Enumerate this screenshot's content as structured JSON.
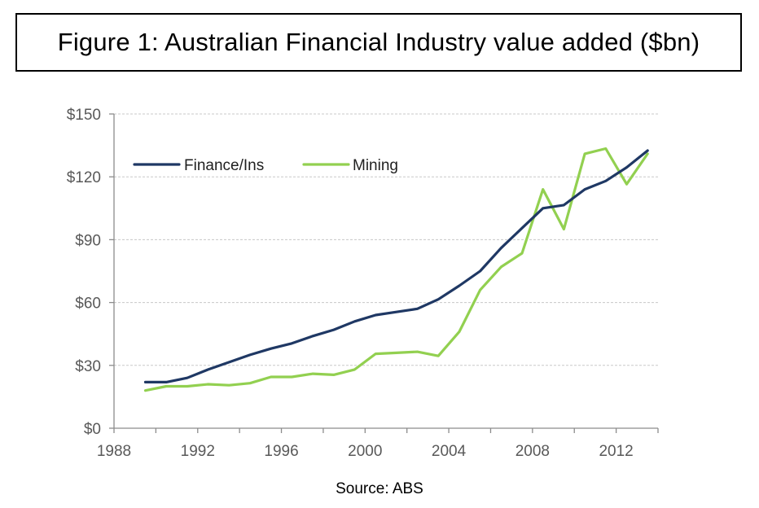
{
  "title": "Figure 1: Australian Financial Industry value added ($bn)",
  "source": "Source: ABS",
  "chart_data": {
    "type": "line",
    "title": "Australian Financial Industry value added ($bn)",
    "xlabel": "",
    "ylabel": "",
    "xlim": [
      1988,
      2014
    ],
    "ylim": [
      0,
      150
    ],
    "x_ticks": [
      1988,
      1992,
      1996,
      2000,
      2004,
      2008,
      2012
    ],
    "y_ticks": [
      0,
      30,
      60,
      90,
      120,
      150
    ],
    "y_tick_labels": [
      "$0",
      "$30",
      "$60",
      "$90",
      "$120",
      "$150"
    ],
    "grid": "horizontal dashed",
    "legend": "top-left",
    "x": [
      1989.5,
      1990.5,
      1991.5,
      1992.5,
      1993.5,
      1994.5,
      1995.5,
      1996.5,
      1997.5,
      1998.5,
      1999.5,
      2000.5,
      2001.5,
      2002.5,
      2003.5,
      2004.5,
      2005.5,
      2006.5,
      2007.5,
      2008.5,
      2009.5,
      2010.5,
      2011.5,
      2012.5,
      2013.5
    ],
    "series": [
      {
        "name": "Finance/Ins",
        "color": "#1f3864",
        "values": [
          22,
          22,
          24,
          28,
          31.5,
          35,
          38,
          40.5,
          44,
          47,
          51,
          54,
          55.5,
          57,
          61.5,
          68,
          75,
          86,
          95.5,
          105,
          106.5,
          114,
          118,
          124.5,
          132.5
        ]
      },
      {
        "name": "Mining",
        "color": "#92d050",
        "values": [
          18,
          20,
          20,
          21,
          20.5,
          21.5,
          24.5,
          24.5,
          26,
          25.5,
          28,
          35.5,
          36,
          36.5,
          34.5,
          46,
          66,
          77,
          83.5,
          114,
          95,
          131,
          133.5,
          116.5,
          131
        ]
      }
    ]
  }
}
